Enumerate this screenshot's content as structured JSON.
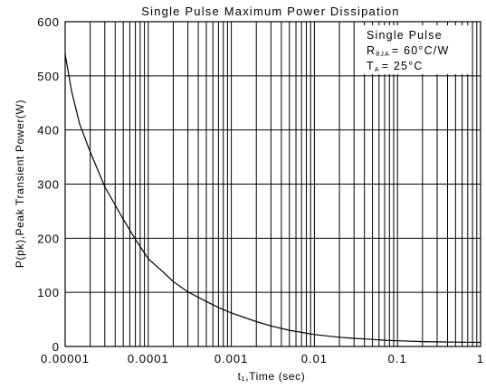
{
  "chart_data": {
    "type": "line",
    "title": "Single Pulse Maximum Power Dissipation",
    "xlabel": "t₁,Time (sec)",
    "ylabel": "P(pk),Peak Transient Power(W)",
    "x_scale": "log",
    "xlim": [
      1e-05,
      1
    ],
    "ylim": [
      0,
      600
    ],
    "x_ticks": [
      "0.00001",
      "0.0001",
      "0.001",
      "0.01",
      "0.1",
      "1"
    ],
    "y_ticks": [
      "0",
      "100",
      "200",
      "300",
      "400",
      "500",
      "600"
    ],
    "grid": true,
    "annotation": {
      "line1": "Single Pulse",
      "line2_sym": "R",
      "line2_sub": "θJA",
      "line2_value": "= 60°C/W",
      "line3_sym": "T",
      "line3_sub": "A",
      "line3_value": "= 25°C"
    },
    "series": [
      {
        "x": [
          1e-05,
          1.2e-05,
          1.5e-05,
          2e-05,
          3e-05,
          5e-05,
          7e-05,
          0.0001,
          0.00015,
          0.0002,
          0.0003,
          0.0005,
          0.0007,
          0.001,
          0.002,
          0.003,
          0.005,
          0.007,
          0.01,
          0.02,
          0.03,
          0.05,
          0.07,
          0.1,
          0.2,
          0.3,
          0.5,
          0.7,
          1
        ],
        "y": [
          540,
          470,
          410,
          360,
          295,
          235,
          198,
          162,
          138,
          120,
          101,
          83,
          72,
          62,
          46,
          38,
          30,
          26,
          22,
          17,
          15,
          13,
          11.5,
          10.5,
          9,
          8.5,
          8,
          7.8,
          7.5
        ]
      }
    ]
  }
}
